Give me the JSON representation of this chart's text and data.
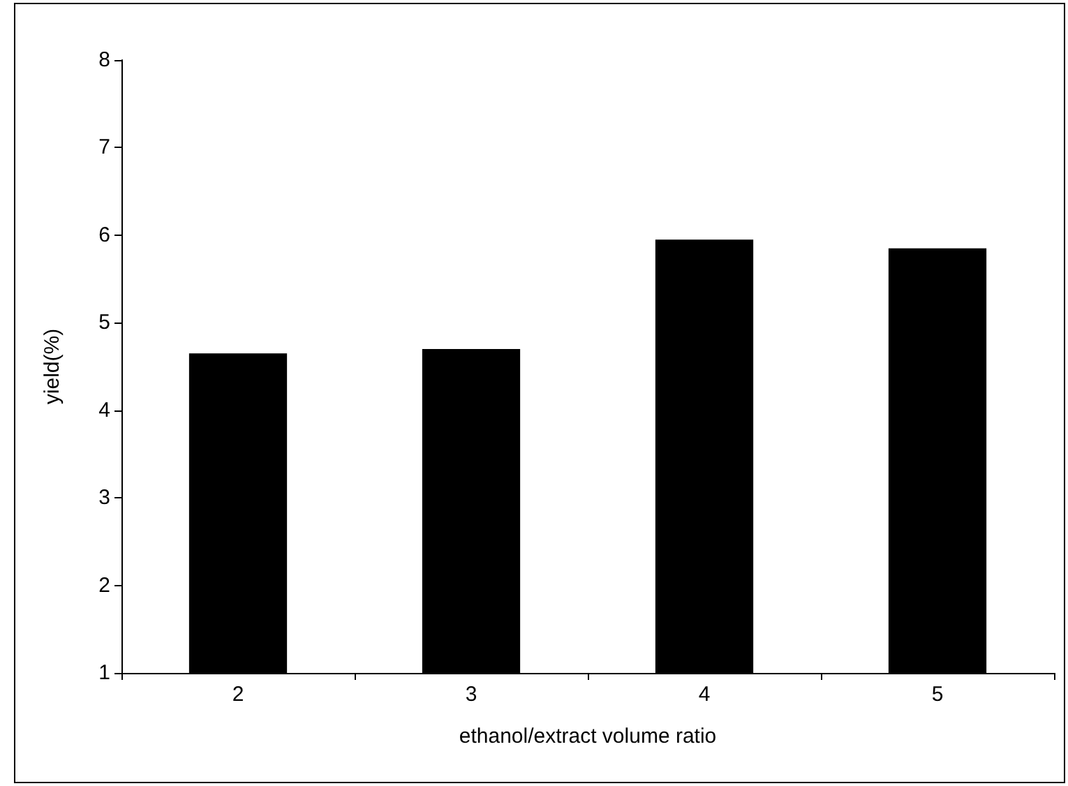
{
  "chart_data": {
    "type": "bar",
    "xlabel": "ethanol/extract volume ratio",
    "ylabel": "yield(%)",
    "categories": [
      "2",
      "3",
      "4",
      "5"
    ],
    "values": [
      4.65,
      4.7,
      5.95,
      5.85
    ],
    "color": "#000000",
    "ylim": [
      1,
      8
    ],
    "yticks": [
      1,
      2,
      3,
      4,
      5,
      6,
      7,
      8
    ],
    "grid": false
  }
}
